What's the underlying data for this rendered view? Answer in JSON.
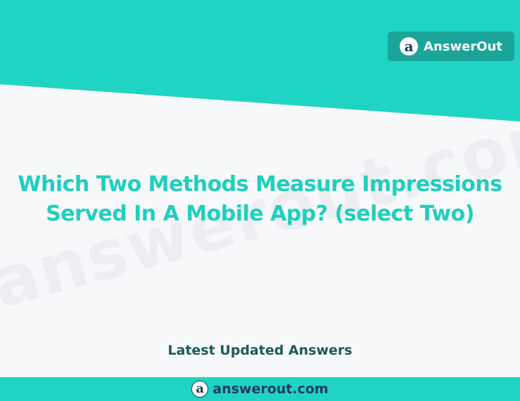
{
  "colors": {
    "teal": "#1fd4c2",
    "dark_teal": "#1ba59a",
    "title": "#1fcfbf",
    "subheading": "#1d5a55",
    "navy": "#1f3a5f",
    "background": "#f7f8fa"
  },
  "header": {
    "logo_glyph": "a",
    "brand_name": "AnswerOut"
  },
  "main": {
    "watermark": "answerout.com",
    "title": "Which Two Methods Measure Impressions Served In A Mobile App? (select Two)",
    "subheading": "Latest Updated Answers"
  },
  "footer": {
    "logo_glyph": "a",
    "site": "answerout.com"
  }
}
